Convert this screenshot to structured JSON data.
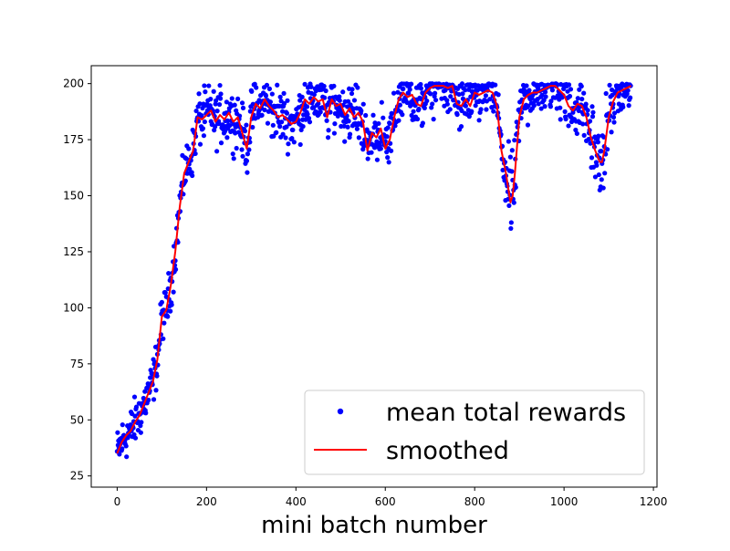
{
  "chart_data": {
    "type": "scatter",
    "title": "",
    "xlabel": "mini batch number",
    "ylabel": "",
    "xlim": [
      -58,
      1208
    ],
    "ylim": [
      20,
      208
    ],
    "xticks": [
      0,
      200,
      400,
      600,
      800,
      1000,
      1200
    ],
    "yticks": [
      25,
      50,
      75,
      100,
      125,
      150,
      175,
      200
    ],
    "grid": false,
    "legend": {
      "placement": "lower right",
      "entries": [
        "mean total rewards",
        "smoothed"
      ]
    },
    "colors": {
      "points": "#0000ff",
      "smoothed": "#ff0000"
    },
    "smoothed_series": {
      "name": "smoothed",
      "x": [
        0,
        10,
        20,
        30,
        40,
        50,
        60,
        70,
        80,
        90,
        100,
        110,
        120,
        130,
        140,
        150,
        160,
        170,
        180,
        190,
        200,
        210,
        220,
        230,
        240,
        250,
        260,
        270,
        280,
        290,
        300,
        310,
        320,
        330,
        340,
        350,
        360,
        370,
        380,
        390,
        400,
        410,
        420,
        430,
        440,
        450,
        460,
        470,
        480,
        490,
        500,
        510,
        520,
        530,
        540,
        550,
        560,
        570,
        580,
        590,
        600,
        610,
        620,
        630,
        640,
        650,
        660,
        670,
        680,
        690,
        700,
        710,
        720,
        730,
        740,
        750,
        760,
        770,
        780,
        790,
        800,
        810,
        820,
        830,
        840,
        850,
        860,
        870,
        880,
        885,
        890,
        900,
        910,
        920,
        930,
        940,
        950,
        960,
        970,
        980,
        990,
        1000,
        1010,
        1020,
        1030,
        1040,
        1050,
        1060,
        1070,
        1080,
        1085,
        1090,
        1100,
        1110,
        1120,
        1130,
        1140,
        1150
      ],
      "y": [
        35,
        40,
        43,
        45,
        49,
        52,
        57,
        62,
        67,
        77,
        96,
        99,
        110,
        125,
        145,
        160,
        165,
        170,
        185,
        184,
        186,
        188,
        183,
        186,
        184,
        187,
        183,
        185,
        178,
        171,
        185,
        191,
        189,
        193,
        190,
        188,
        185,
        186,
        184,
        182,
        183,
        187,
        193,
        191,
        194,
        192,
        193,
        185,
        193,
        190,
        191,
        186,
        189,
        185,
        187,
        183,
        170,
        178,
        176,
        180,
        171,
        175,
        185,
        193,
        196,
        194,
        195,
        191,
        190,
        196,
        198,
        199,
        199,
        199,
        198,
        199,
        191,
        190,
        193,
        190,
        196,
        195,
        196,
        197,
        196,
        190,
        170,
        160,
        147,
        150,
        160,
        185,
        193,
        195,
        196,
        196,
        197,
        198,
        199,
        199,
        197,
        195,
        190,
        188,
        191,
        190,
        185,
        176,
        170,
        165,
        165,
        170,
        185,
        192,
        196,
        197,
        198,
        199
      ]
    },
    "scatter_series": {
      "name": "mean total rewards",
      "note": "≈1150 points; each point scattered around the smoothed curve with data-derived spread (generated in script)"
    }
  }
}
